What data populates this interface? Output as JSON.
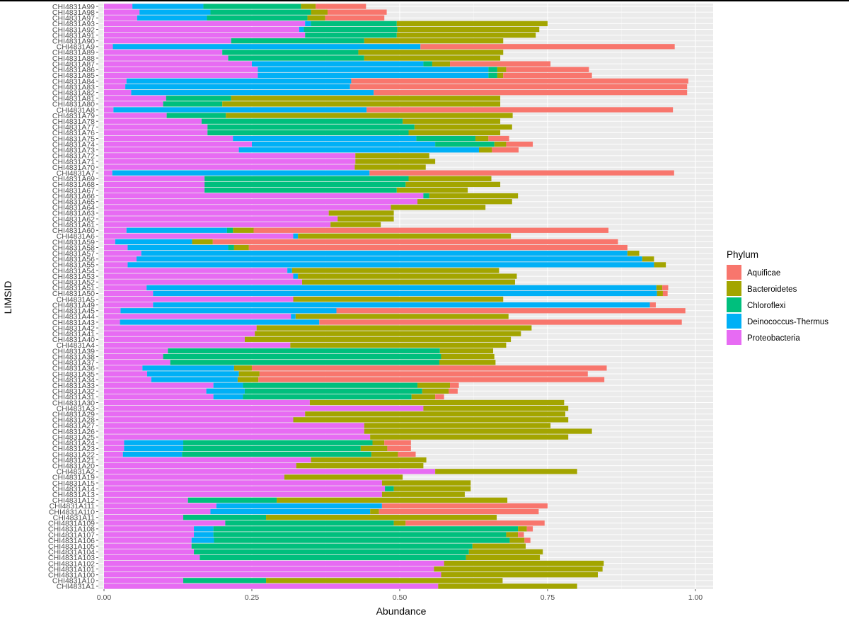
{
  "chart_data": {
    "type": "bar",
    "orientation": "horizontal",
    "stacked": true,
    "xlabel": "Abundance",
    "ylabel": "LIMSID",
    "xlim": [
      0,
      1.03
    ],
    "xticks": [
      0,
      0.25,
      0.5,
      0.75,
      1.0
    ],
    "xtick_labels": [
      "0.00",
      "0.25",
      "0.50",
      "0.75",
      "1.00"
    ],
    "grid": true,
    "legend": {
      "title": "Phylum",
      "position": "right",
      "entries": [
        "Aquificae",
        "Bacteroidetes",
        "Chloroflexi",
        "Deinococcus-Thermus",
        "Proteobacteria"
      ]
    },
    "colors": {
      "Aquificae": "#F8766D",
      "Bacteroidetes": "#A3A500",
      "Chloroflexi": "#00BF7D",
      "Deinococcus-Thermus": "#00B0F6",
      "Proteobacteria": "#E76BF3"
    },
    "series_order": [
      "Proteobacteria",
      "Deinococcus-Thermus",
      "Chloroflexi",
      "Bacteroidetes",
      "Aquificae"
    ],
    "categories": [
      "CHI4831A99",
      "CHI4831A98",
      "CHI4831A97",
      "CHI4831A93",
      "CHI4831A92",
      "CHI4831A91",
      "CHI4831A90",
      "CHI4831A9",
      "CHI4831A89",
      "CHI4831A88",
      "CHI4831A87",
      "CHI4831A86",
      "CHI4831A85",
      "CHI4831A84",
      "CHI4831A83",
      "CHI4831A82",
      "CHI4831A81",
      "CHI4831A80",
      "CHI4831A8",
      "CHI4831A79",
      "CHI4831A78",
      "CHI4831A77",
      "CHI4831A76",
      "CHI4831A75",
      "CHI4831A74",
      "CHI4831A73",
      "CHI4831A72",
      "CHI4831A71",
      "CHI4831A70",
      "CHI4831A7",
      "CHI4831A69",
      "CHI4831A68",
      "CHI4831A67",
      "CHI4831A66",
      "CHI4831A65",
      "CHI4831A64",
      "CHI4831A63",
      "CHI4831A62",
      "CHI4831A61",
      "CHI4831A60",
      "CHI4831A6",
      "CHI4831A59",
      "CHI4831A58",
      "CHI4831A57",
      "CHI4831A56",
      "CHI4831A55",
      "CHI4831A54",
      "CHI4831A53",
      "CHI4831A52",
      "CHI4831A51",
      "CHI4831A50",
      "CHI4831A5",
      "CHI4831A49",
      "CHI4831A45",
      "CHI4831A44",
      "CHI4831A43",
      "CHI4831A42",
      "CHI4831A41",
      "CHI4831A40",
      "CHI4831A4",
      "CHI4831A39",
      "CHI4831A38",
      "CHI4831A37",
      "CHI4831A36",
      "CHI4831A35",
      "CHI4831A34",
      "CHI4831A33",
      "CHI4831A32",
      "CHI4831A31",
      "CHI4831A30",
      "CHI4831A3",
      "CHI4831A29",
      "CHI4831A28",
      "CHI4831A27",
      "CHI4831A26",
      "CHI4831A25",
      "CHI4831A24",
      "CHI4831A23",
      "CHI4831A22",
      "CHI4831A21",
      "CHI4831A20",
      "CHI4831A2",
      "CHI4831A19",
      "CHI4831A15",
      "CHI4831A14",
      "CHI4831A13",
      "CHI4831A12",
      "CHI4831A111",
      "CHI4831A110",
      "CHI4831A11",
      "CHI4831A109",
      "CHI4831A108",
      "CHI4831A107",
      "CHI4831A106",
      "CHI4831A105",
      "CHI4831A104",
      "CHI4831A103",
      "CHI4831A102",
      "CHI4831A101",
      "CHI4831A100",
      "CHI4831A10",
      "CHI4831A1"
    ],
    "series": [
      {
        "name": "Proteobacteria",
        "values": [
          0.048,
          0.06,
          0.056,
          0.34,
          0.33,
          0.34,
          0.215,
          0.015,
          0.2,
          0.21,
          0.25,
          0.26,
          0.26,
          0.038,
          0.036,
          0.046,
          0.105,
          0.1,
          0.016,
          0.106,
          0.165,
          0.175,
          0.175,
          0.218,
          0.25,
          0.228,
          0.425,
          0.425,
          0.424,
          0.014,
          0.17,
          0.17,
          0.17,
          0.54,
          0.53,
          0.485,
          0.38,
          0.395,
          0.383,
          0.038,
          0.32,
          0.019,
          0.04,
          0.063,
          0.055,
          0.04,
          0.31,
          0.32,
          0.335,
          0.072,
          0.083,
          0.32,
          0.083,
          0.028,
          0.316,
          0.027,
          0.258,
          0.255,
          0.238,
          0.315,
          0.108,
          0.1,
          0.112,
          0.065,
          0.073,
          0.08,
          0.185,
          0.173,
          0.185,
          0.348,
          0.54,
          0.34,
          0.32,
          0.44,
          0.44,
          0.45,
          0.034,
          0.034,
          0.032,
          0.35,
          0.325,
          0.56,
          0.305,
          0.47,
          0.475,
          0.47,
          0.142,
          0.19,
          0.18,
          0.134,
          0.205,
          0.152,
          0.152,
          0.148,
          0.148,
          0.152,
          0.162,
          0.575,
          0.558,
          0.57,
          0.134,
          0.565
        ]
      },
      {
        "name": "Deinococcus-Thermus",
        "values": [
          0.12,
          0.12,
          0.118,
          0.01,
          0.008,
          0.0,
          0.0,
          0.52,
          0.0,
          0.0,
          0.29,
          0.39,
          0.39,
          0.38,
          0.38,
          0.41,
          0.0,
          0.0,
          0.428,
          0.0,
          0.0,
          0.0,
          0.0,
          0.31,
          0.31,
          0.406,
          0.0,
          0.0,
          0.0,
          0.435,
          0.0,
          0.0,
          0.0,
          0.0,
          0.0,
          0.0,
          0.0,
          0.0,
          0.0,
          0.17,
          0.008,
          0.13,
          0.17,
          0.822,
          0.855,
          0.89,
          0.008,
          0.008,
          0.0,
          0.862,
          0.852,
          0.0,
          0.84,
          0.365,
          0.008,
          0.337,
          0.0,
          0.0,
          0.0,
          0.0,
          0.0,
          0.0,
          0.0,
          0.155,
          0.155,
          0.146,
          0.05,
          0.065,
          0.05,
          0.0,
          0.0,
          0.0,
          0.0,
          0.0,
          0.0,
          0.0,
          0.1,
          0.1,
          0.1,
          0.0,
          0.0,
          0.0,
          0.0,
          0.0,
          0.0,
          0.0,
          0.0,
          0.28,
          0.27,
          0.0,
          0.0,
          0.033,
          0.033,
          0.038,
          0.0,
          0.0,
          0.0,
          0.0,
          0.0,
          0.0,
          0.0,
          0.0
        ]
      },
      {
        "name": "Chloroflexi",
        "values": [
          0.165,
          0.17,
          0.17,
          0.145,
          0.158,
          0.155,
          0.225,
          0.0,
          0.23,
          0.23,
          0.015,
          0.015,
          0.015,
          0.0,
          0.0,
          0.0,
          0.11,
          0.1,
          0.0,
          0.1,
          0.34,
          0.35,
          0.34,
          0.1,
          0.1,
          0.0,
          0.0,
          0.0,
          0.0,
          0.0,
          0.345,
          0.34,
          0.325,
          0.01,
          0.0,
          0.0,
          0.0,
          0.0,
          0.0,
          0.01,
          0.0,
          0.0,
          0.01,
          0.0,
          0.0,
          0.0,
          0.0,
          0.0,
          0.0,
          0.0,
          0.0,
          0.0,
          0.0,
          0.0,
          0.0,
          0.0,
          0.0,
          0.0,
          0.0,
          0.0,
          0.46,
          0.47,
          0.455,
          0.0,
          0.0,
          0.0,
          0.295,
          0.3,
          0.285,
          0.0,
          0.0,
          0.0,
          0.0,
          0.0,
          0.0,
          0.0,
          0.32,
          0.3,
          0.32,
          0.0,
          0.0,
          0.0,
          0.0,
          0.0,
          0.015,
          0.0,
          0.15,
          0.0,
          0.0,
          0.14,
          0.285,
          0.515,
          0.495,
          0.5,
          0.475,
          0.465,
          0.45,
          0.0,
          0.0,
          0.0,
          0.14,
          0.0
        ]
      },
      {
        "name": "Bacteroidetes",
        "values": [
          0.025,
          0.028,
          0.03,
          0.255,
          0.24,
          0.235,
          0.235,
          0.0,
          0.245,
          0.23,
          0.03,
          0.015,
          0.01,
          0.0,
          0.0,
          0.0,
          0.455,
          0.47,
          0.0,
          0.485,
          0.165,
          0.165,
          0.155,
          0.022,
          0.02,
          0.022,
          0.125,
          0.135,
          0.12,
          0.0,
          0.14,
          0.16,
          0.12,
          0.15,
          0.16,
          0.16,
          0.11,
          0.095,
          0.085,
          0.035,
          0.36,
          0.035,
          0.025,
          0.02,
          0.02,
          0.02,
          0.35,
          0.37,
          0.36,
          0.01,
          0.01,
          0.355,
          0.0,
          0.0,
          0.36,
          0.0,
          0.465,
          0.45,
          0.45,
          0.365,
          0.09,
          0.09,
          0.095,
          0.03,
          0.035,
          0.035,
          0.055,
          0.045,
          0.04,
          0.43,
          0.245,
          0.44,
          0.465,
          0.315,
          0.385,
          0.335,
          0.02,
          0.045,
          0.045,
          0.195,
          0.215,
          0.24,
          0.2,
          0.15,
          0.13,
          0.14,
          0.39,
          0.0,
          0.015,
          0.39,
          0.02,
          0.015,
          0.02,
          0.025,
          0.09,
          0.125,
          0.125,
          0.27,
          0.285,
          0.265,
          0.4,
          0.235
        ]
      },
      {
        "name": "Aquificae",
        "values": [
          0.085,
          0.1,
          0.1,
          0.0,
          0.0,
          0.0,
          0.0,
          0.43,
          0.0,
          0.0,
          0.17,
          0.14,
          0.15,
          0.57,
          0.57,
          0.53,
          0.0,
          0.0,
          0.518,
          0.0,
          0.0,
          0.0,
          0.0,
          0.035,
          0.045,
          0.045,
          0.0,
          0.0,
          0.0,
          0.515,
          0.0,
          0.0,
          0.0,
          0.0,
          0.0,
          0.0,
          0.0,
          0.0,
          0.0,
          0.6,
          0.0,
          0.685,
          0.64,
          0.0,
          0.0,
          0.0,
          0.0,
          0.0,
          0.0,
          0.01,
          0.008,
          0.0,
          0.01,
          0.59,
          0.0,
          0.613,
          0.0,
          0.0,
          0.0,
          0.0,
          0.0,
          0.0,
          0.0,
          0.6,
          0.555,
          0.585,
          0.015,
          0.015,
          0.015,
          0.0,
          0.0,
          0.0,
          0.0,
          0.0,
          0.0,
          0.0,
          0.045,
          0.04,
          0.03,
          0.0,
          0.0,
          0.0,
          0.0,
          0.0,
          0.0,
          0.0,
          0.0,
          0.28,
          0.27,
          0.0,
          0.235,
          0.01,
          0.01,
          0.01,
          0.0,
          0.0,
          0.0,
          0.0,
          0.0,
          0.0,
          0.0,
          0.0
        ]
      }
    ]
  }
}
